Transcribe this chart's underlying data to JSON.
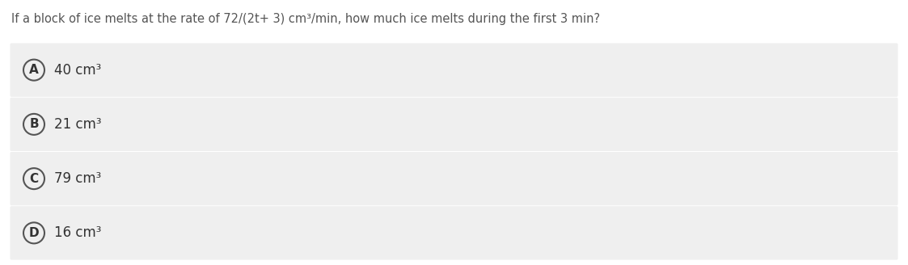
{
  "question": "If a block of ice melts at the rate of 72/(2t+ 3) cm³/min, how much ice melts during the first 3 min?",
  "options": [
    {
      "label": "A",
      "text": "40 cm³"
    },
    {
      "label": "B",
      "text": "21 cm³"
    },
    {
      "label": "C",
      "text": "79 cm³"
    },
    {
      "label": "D",
      "text": "16 cm³"
    }
  ],
  "fig_width": 11.23,
  "fig_height": 3.28,
  "dpi": 100,
  "bg_color": "#ffffff",
  "option_bg_color": "#efefef",
  "question_color": "#555555",
  "option_text_color": "#333333",
  "circle_edge_color": "#555555",
  "separator_color": "#ffffff",
  "question_fontsize": 10.5,
  "option_fontsize": 12,
  "label_fontsize": 11
}
